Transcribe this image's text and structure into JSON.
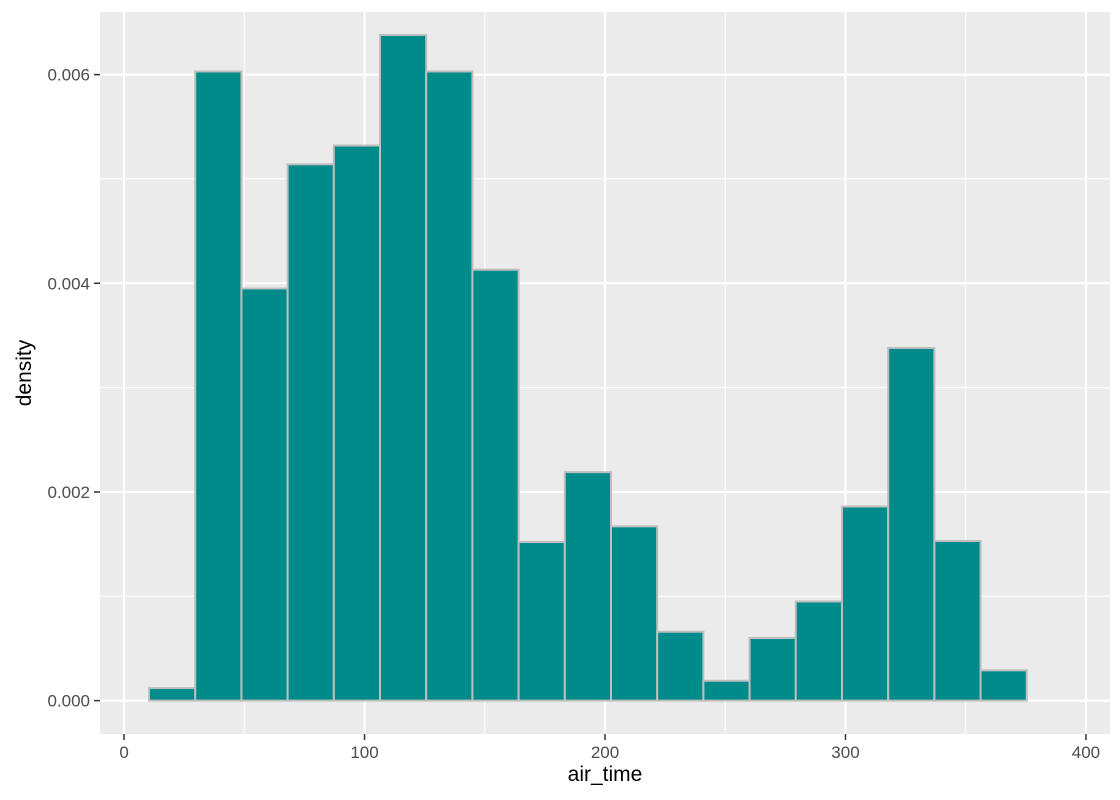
{
  "chart_data": {
    "type": "bar",
    "subtype": "histogram",
    "title": "",
    "xlabel": "air_time",
    "ylabel": "density",
    "xlim": [
      -10,
      410
    ],
    "ylim": [
      -0.00032,
      0.0066
    ],
    "x_ticks": [
      0,
      100,
      200,
      300,
      400
    ],
    "x_tick_labels": [
      "0",
      "100",
      "200",
      "300",
      "400"
    ],
    "y_ticks": [
      0,
      0.002,
      0.004,
      0.006
    ],
    "y_tick_labels": [
      "0.000",
      "0.002",
      "0.004",
      "0.006"
    ],
    "grid": true,
    "legend": "none",
    "bin_width": 19.21,
    "bin_centers": [
      20.0,
      39.21,
      58.42,
      77.63,
      96.84,
      116.05,
      135.26,
      154.47,
      173.68,
      192.89,
      212.1,
      231.31,
      250.52,
      269.73,
      288.94,
      308.15,
      327.36,
      346.57,
      365.78,
      384.99
    ],
    "values": [
      0.00012,
      0.00603,
      0.00395,
      0.00514,
      0.00532,
      0.00638,
      0.00603,
      0.00413,
      0.00152,
      0.00219,
      0.00167,
      0.00066,
      0.00019,
      0.0006,
      0.00095,
      0.00186,
      0.00338,
      0.00153,
      0.00029,
      0.0
    ],
    "fill_color": "#008b8b",
    "edge_color": "#bebebe",
    "panel_background": "#ebebeb",
    "grid_color": "#ffffff"
  }
}
